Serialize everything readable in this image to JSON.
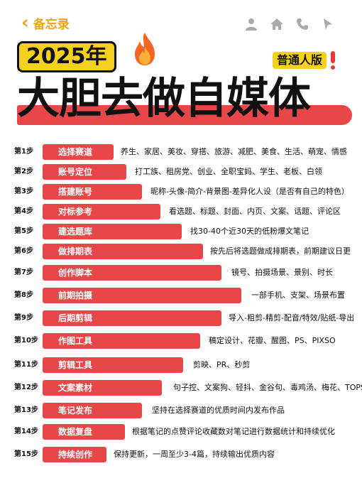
{
  "topbar": {
    "back_label": "备忘录",
    "icons": [
      "person-icon",
      "home-icon",
      "phone-icon",
      "send-icon"
    ]
  },
  "header": {
    "year": "2025年",
    "edition": "普通人版",
    "headline": "大胆去做自媒体"
  },
  "colors": {
    "accent_red": "#e8474a",
    "accent_yellow": "#f5d11f",
    "back_orange": "#e6a817"
  },
  "steps": [
    {
      "num": "第1步",
      "title": "选择赛道",
      "desc": "养生、家居、美妆、穿搭、旅游、减肥、美食、生活、萌宠、情感"
    },
    {
      "num": "第2步",
      "title": "账号定位",
      "desc": "打工族、租房党、创业、全职宝妈、学生、老板、白领"
    },
    {
      "num": "第3步",
      "title": "搭建账号",
      "desc": "昵称-头像-简介-背景图-差异化人设（是否有自己的特色）"
    },
    {
      "num": "第4步",
      "title": "对标参考",
      "desc": "看选题、标题、封面、内页、文案、话题、评论区"
    },
    {
      "num": "第5步",
      "title": "建选题库",
      "desc": "找30-40个近30天的低粉爆文笔记"
    },
    {
      "num": "第6步",
      "title": "做排期表",
      "desc": "按先后将选题做成排期表，前期建议日更"
    },
    {
      "num": "第7步",
      "title": "创作脚本",
      "desc": "镜号、拍摄场景、景别、时长"
    },
    {
      "num": "第8步",
      "title": "前期拍摄",
      "desc": "一部手机、支架、场景布置"
    },
    {
      "num": "第9步",
      "title": "后期剪辑",
      "desc": "导入-粗剪-精剪-配音/特效/贴纸-导出"
    },
    {
      "num": "第10步",
      "title": "作图工具",
      "desc": "稿定设计、花瓣、醒图、PS、PIXSO"
    },
    {
      "num": "第11步",
      "title": "剪辑工具",
      "desc": "剪映、PR、秒剪"
    },
    {
      "num": "第12步",
      "title": "文案素材",
      "desc": "句子控、文案狗、轻抖、金谷句、毒鸡汤、梅花、TOPS"
    },
    {
      "num": "第13步",
      "title": "笔记发布",
      "desc": "坚持在选择赛道的优质时间内发布作品"
    },
    {
      "num": "第14步",
      "title": "数据复盘",
      "desc": "根据笔记的点赞评论收藏数对笔记进行数据统计和持续优化"
    },
    {
      "num": "第15步",
      "title": "持续创作",
      "desc": "保持更新，一周至少3-4篇，持续输出优质内容"
    }
  ]
}
